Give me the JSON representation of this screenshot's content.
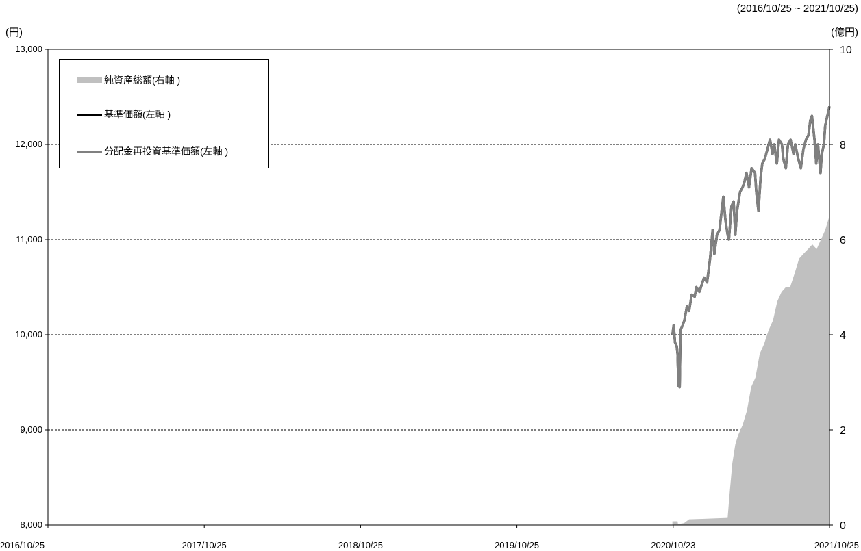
{
  "header": {
    "period": "(2016/10/25 ~ 2021/10/25)",
    "left_unit": "(円)",
    "right_unit": "(億円)"
  },
  "legend": [
    {
      "label": "純資産総額(右軸 )",
      "color": "#c0c0c0"
    },
    {
      "label": "基準価額(左軸 )",
      "color": "#000000"
    },
    {
      "label": "分配金再投資基準価額(左軸 )",
      "color": "#808080"
    }
  ],
  "chart_data": {
    "type": "line",
    "x_tick_labels": [
      "2016/10/25",
      "2017/10/25",
      "2018/10/25",
      "2019/10/25",
      "2020/10/23",
      "2021/10/25"
    ],
    "x_range": [
      "2016/10/25",
      "2021/10/25"
    ],
    "y_left": {
      "range": [
        8000,
        13000
      ],
      "ticks": [
        "8,000",
        "9,000",
        "10,000",
        "11,000",
        "12,000",
        "13,000"
      ]
    },
    "y_right": {
      "range": [
        0,
        10
      ],
      "ticks": [
        "0",
        "2",
        "4",
        "6",
        "8",
        "10"
      ]
    },
    "grid": "horizontal dashed",
    "legend_position": "top-left",
    "series": [
      {
        "name": "基準価額(左軸 )",
        "axis": "left",
        "color": "#000000",
        "points": [
          [
            "2020/10/23",
            10000
          ],
          [
            "2020/10/26",
            10100
          ],
          [
            "2020/10/29",
            9920
          ],
          [
            "2020/11/02",
            9880
          ],
          [
            "2020/11/04",
            9800
          ],
          [
            "2020/11/06",
            9460
          ],
          [
            "2020/11/09",
            9450
          ],
          [
            "2020/11/11",
            10050
          ],
          [
            "2020/11/16",
            10100
          ],
          [
            "2020/11/20",
            10150
          ],
          [
            "2020/11/26",
            10300
          ],
          [
            "2020/12/01",
            10250
          ],
          [
            "2020/12/07",
            10420
          ],
          [
            "2020/12/14",
            10400
          ],
          [
            "2020/12/18",
            10500
          ],
          [
            "2020/12/25",
            10450
          ],
          [
            "2021/01/05",
            10600
          ],
          [
            "2021/01/12",
            10550
          ],
          [
            "2021/01/19",
            10800
          ],
          [
            "2021/01/25",
            11100
          ],
          [
            "2021/01/29",
            10850
          ],
          [
            "2021/02/04",
            11050
          ],
          [
            "2021/02/10",
            11100
          ],
          [
            "2021/02/15",
            11300
          ],
          [
            "2021/02/19",
            11450
          ],
          [
            "2021/02/24",
            11200
          ],
          [
            "2021/03/01",
            11050
          ],
          [
            "2021/03/04",
            11000
          ],
          [
            "2021/03/10",
            11350
          ],
          [
            "2021/03/15",
            11400
          ],
          [
            "2021/03/19",
            11050
          ],
          [
            "2021/03/23",
            11300
          ],
          [
            "2021/03/30",
            11500
          ],
          [
            "2021/04/05",
            11550
          ],
          [
            "2021/04/09",
            11600
          ],
          [
            "2021/04/14",
            11700
          ],
          [
            "2021/04/20",
            11550
          ],
          [
            "2021/04/26",
            11750
          ],
          [
            "2021/05/04",
            11700
          ],
          [
            "2021/05/07",
            11500
          ],
          [
            "2021/05/12",
            11300
          ],
          [
            "2021/05/17",
            11650
          ],
          [
            "2021/05/21",
            11800
          ],
          [
            "2021/05/27",
            11850
          ],
          [
            "2021/06/02",
            11950
          ],
          [
            "2021/06/08",
            12050
          ],
          [
            "2021/06/14",
            11900
          ],
          [
            "2021/06/18",
            12000
          ],
          [
            "2021/06/24",
            11800
          ],
          [
            "2021/06/29",
            12050
          ],
          [
            "2021/07/06",
            12000
          ],
          [
            "2021/07/09",
            11850
          ],
          [
            "2021/07/15",
            11750
          ],
          [
            "2021/07/20",
            12000
          ],
          [
            "2021/07/26",
            12050
          ],
          [
            "2021/08/02",
            11900
          ],
          [
            "2021/08/06",
            12000
          ],
          [
            "2021/08/13",
            11850
          ],
          [
            "2021/08/19",
            11750
          ],
          [
            "2021/08/25",
            11950
          ],
          [
            "2021/08/31",
            12050
          ],
          [
            "2021/09/06",
            12100
          ],
          [
            "2021/09/10",
            12250
          ],
          [
            "2021/09/14",
            12300
          ],
          [
            "2021/09/20",
            12050
          ],
          [
            "2021/09/24",
            11800
          ],
          [
            "2021/09/28",
            12000
          ],
          [
            "2021/10/01",
            11850
          ],
          [
            "2021/10/04",
            11700
          ],
          [
            "2021/10/07",
            11900
          ],
          [
            "2021/10/12",
            12000
          ],
          [
            "2021/10/15",
            12200
          ],
          [
            "2021/10/20",
            12300
          ],
          [
            "2021/10/25",
            12400
          ]
        ]
      },
      {
        "name": "分配金再投資基準価額(左軸 )",
        "axis": "left",
        "color": "#808080",
        "same_as": "基準価額(左軸 )"
      },
      {
        "name": "純資産総額(右軸 )",
        "axis": "right",
        "type": "area",
        "color": "#c0c0c0",
        "points": [
          [
            "2020/10/23",
            0.08
          ],
          [
            "2020/11/04",
            0.08
          ],
          [
            "2020/11/05",
            0.02
          ],
          [
            "2020/11/19",
            0.04
          ],
          [
            "2020/12/01",
            0.12
          ],
          [
            "2021/01/01",
            0.13
          ],
          [
            "2021/02/01",
            0.14
          ],
          [
            "2021/03/01",
            0.15
          ],
          [
            "2021/03/05",
            0.6
          ],
          [
            "2021/03/12",
            1.3
          ],
          [
            "2021/03/19",
            1.7
          ],
          [
            "2021/03/26",
            1.9
          ],
          [
            "2021/04/05",
            2.1
          ],
          [
            "2021/04/15",
            2.4
          ],
          [
            "2021/04/25",
            2.9
          ],
          [
            "2021/05/05",
            3.1
          ],
          [
            "2021/05/15",
            3.6
          ],
          [
            "2021/05/25",
            3.8
          ],
          [
            "2021/06/05",
            4.1
          ],
          [
            "2021/06/15",
            4.3
          ],
          [
            "2021/06/25",
            4.7
          ],
          [
            "2021/07/05",
            4.9
          ],
          [
            "2021/07/15",
            5.0
          ],
          [
            "2021/07/25",
            5.0
          ],
          [
            "2021/08/05",
            5.3
          ],
          [
            "2021/08/15",
            5.6
          ],
          [
            "2021/08/25",
            5.7
          ],
          [
            "2021/09/05",
            5.8
          ],
          [
            "2021/09/15",
            5.9
          ],
          [
            "2021/09/25",
            5.8
          ],
          [
            "2021/10/05",
            6.0
          ],
          [
            "2021/10/15",
            6.2
          ],
          [
            "2021/10/25",
            6.5
          ]
        ]
      }
    ]
  }
}
